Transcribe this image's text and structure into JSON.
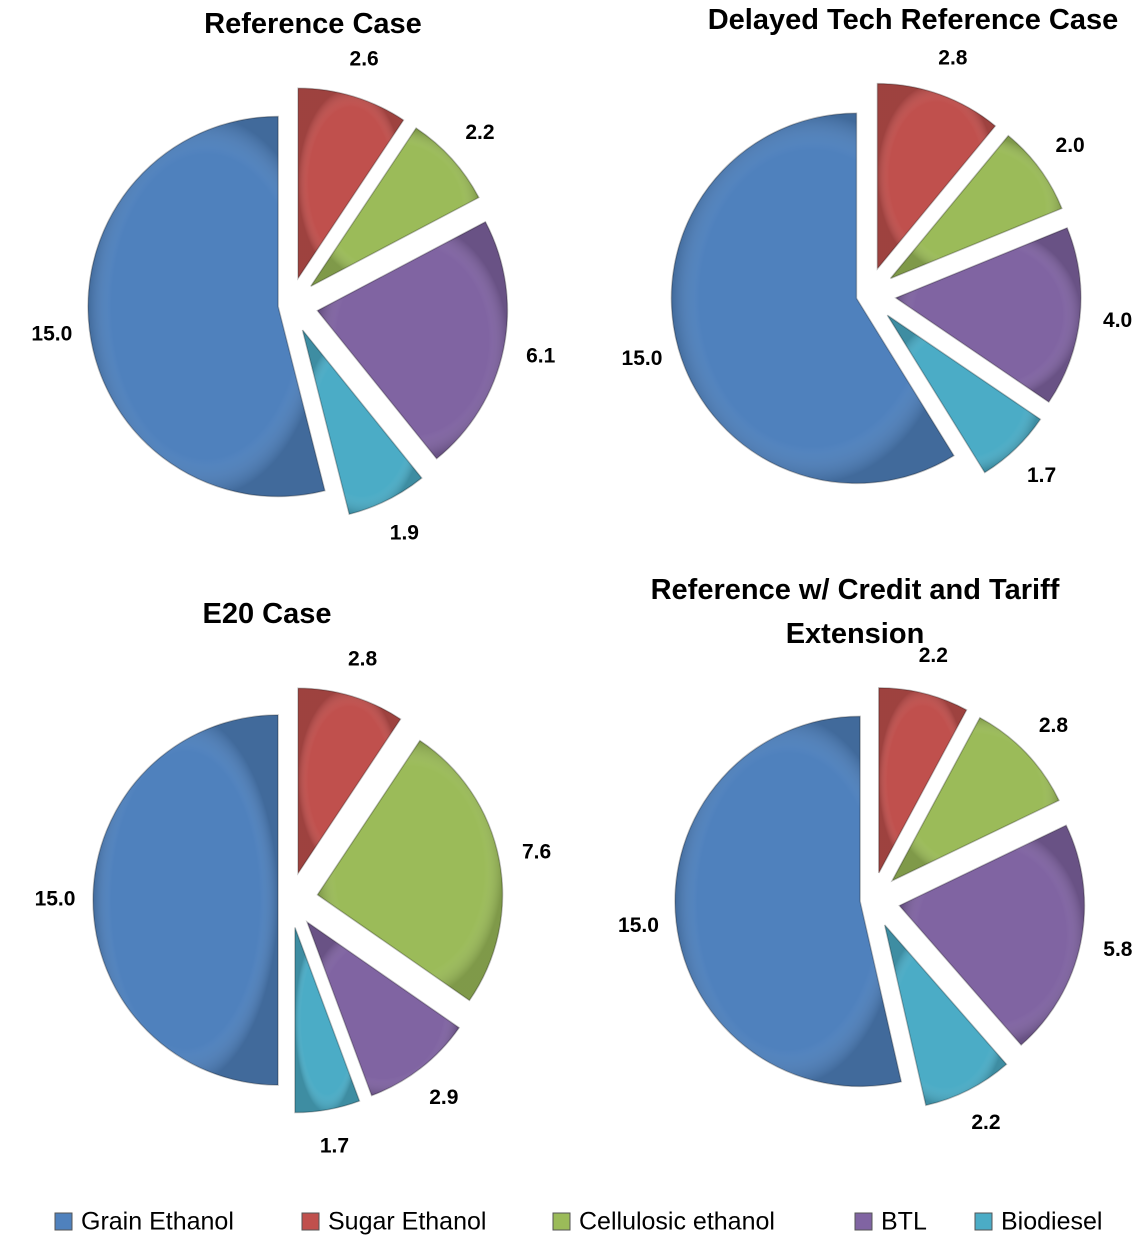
{
  "chart_data": [
    {
      "type": "pie",
      "title": "Reference Case",
      "categories": [
        "Grain Ethanol",
        "Sugar Ethanol",
        "Cellulosic ethanol",
        "BTL",
        "Biodiesel"
      ],
      "values": [
        15.0,
        2.6,
        2.2,
        6.1,
        1.9
      ],
      "value_labels": [
        "15.0",
        "2.6",
        "2.2",
        "6.1",
        "1.9"
      ],
      "colors": [
        "#4f81bd",
        "#c0504d",
        "#9bbb59",
        "#8064a2",
        "#4bacc6"
      ]
    },
    {
      "type": "pie",
      "title": "Delayed Tech Reference Case",
      "categories": [
        "Grain Ethanol",
        "Sugar Ethanol",
        "Cellulosic ethanol",
        "BTL",
        "Biodiesel"
      ],
      "values": [
        15.0,
        2.8,
        2.0,
        4.0,
        1.7
      ],
      "value_labels": [
        "15.0",
        "2.8",
        "2.0",
        "4.0",
        "1.7"
      ],
      "colors": [
        "#4f81bd",
        "#c0504d",
        "#9bbb59",
        "#8064a2",
        "#4bacc6"
      ]
    },
    {
      "type": "pie",
      "title": "E20 Case",
      "categories": [
        "Grain Ethanol",
        "Sugar Ethanol",
        "Cellulosic ethanol",
        "BTL",
        "Biodiesel"
      ],
      "values": [
        15.0,
        2.8,
        7.6,
        2.9,
        1.7
      ],
      "value_labels": [
        "15.0",
        "2.8",
        "7.6",
        "2.9",
        "1.7"
      ],
      "colors": [
        "#4f81bd",
        "#c0504d",
        "#9bbb59",
        "#8064a2",
        "#4bacc6"
      ]
    },
    {
      "type": "pie",
      "title": "Reference w/ Credit and Tariff Extension",
      "categories": [
        "Grain Ethanol",
        "Sugar Ethanol",
        "Cellulosic ethanol",
        "BTL",
        "Biodiesel"
      ],
      "values": [
        15.0,
        2.2,
        2.8,
        5.8,
        2.2
      ],
      "value_labels": [
        "15.0",
        "2.2",
        "2.8",
        "5.8",
        "2.2"
      ],
      "colors": [
        "#4f81bd",
        "#c0504d",
        "#9bbb59",
        "#8064a2",
        "#4bacc6"
      ]
    }
  ]
}
